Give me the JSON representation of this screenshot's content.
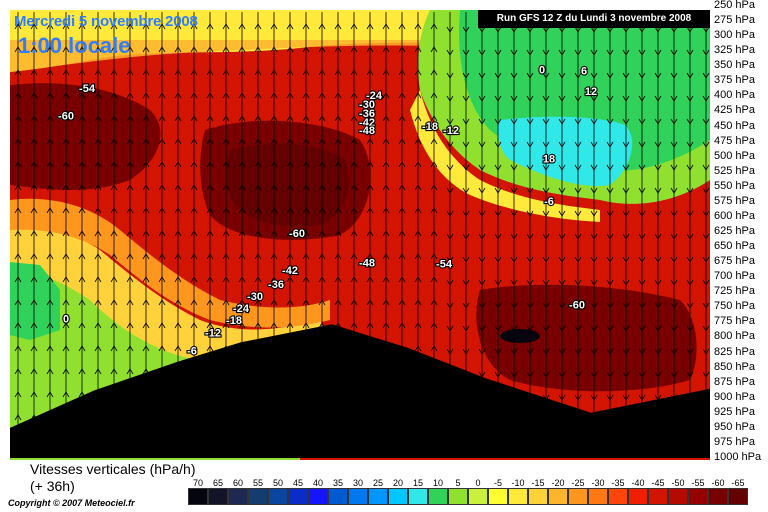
{
  "header": {
    "date_title": "Mercredi 5 novembre 2008",
    "time_title": "1:00 locale",
    "run_info": "Run GFS 12 Z du Lundi 3 novembre 2008"
  },
  "footer": {
    "variable_line1": "Vitesses verticales (hPa/h)",
    "variable_line2": "(+ 36h)",
    "copyright": "Copyright © 2007 Meteociel.fr"
  },
  "chart_data": {
    "type": "heatmap",
    "title": "Mercredi 5 novembre 2008",
    "subtitle": "1:00 locale",
    "ylabel": "",
    "y_axis": {
      "unit": "hPa",
      "ticks": [
        "250 hPa",
        "275 hPa",
        "300 hPa",
        "325 hPa",
        "350 hPa",
        "375 hPa",
        "400 hPa",
        "425 hPa",
        "450 hPa",
        "475 hPa",
        "500 hPa",
        "525 hPa",
        "550 hPa",
        "575 hPa",
        "600 hPa",
        "625 hPa",
        "650 hPa",
        "675 hPa",
        "700 hPa",
        "725 hPa",
        "750 hPa",
        "775 hPa",
        "800 hPa",
        "825 hPa",
        "850 hPa",
        "875 hPa",
        "900 hPa",
        "925 hPa",
        "950 hPa",
        "975 hPa",
        "1000 hPa"
      ],
      "range": [
        250,
        1000
      ]
    },
    "legend": {
      "values": [
        "70",
        "65",
        "60",
        "55",
        "50",
        "45",
        "40",
        "35",
        "30",
        "25",
        "20",
        "15",
        "10",
        "5",
        "0",
        "-5",
        "-10",
        "-15",
        "-20",
        "-25",
        "-30",
        "-35",
        "-40",
        "-45",
        "-50",
        "-55",
        "-60",
        "-65"
      ],
      "colors": [
        "#05050f",
        "#141428",
        "#1e2850",
        "#143c6e",
        "#0a46a0",
        "#0a2dc8",
        "#1414ff",
        "#005ad2",
        "#0078f0",
        "#0096ff",
        "#00c8ff",
        "#30e8e8",
        "#30d25a",
        "#90e030",
        "#c8f03c",
        "#ffff32",
        "#ffea3c",
        "#ffd23c",
        "#ffb42d",
        "#ff961e",
        "#ff7814",
        "#ff460a",
        "#f01e00",
        "#d21400",
        "#b40a00",
        "#960000",
        "#780000",
        "#640000"
      ]
    },
    "contour_labels": [
      {
        "text": "-54",
        "x": 0.11,
        "p": 393
      },
      {
        "text": "-60",
        "x": 0.08,
        "p": 438
      },
      {
        "text": "-24",
        "x": 0.52,
        "p": 404
      },
      {
        "text": "-30",
        "x": 0.51,
        "p": 419
      },
      {
        "text": "-36",
        "x": 0.51,
        "p": 434
      },
      {
        "text": "-42",
        "x": 0.51,
        "p": 449
      },
      {
        "text": "-48",
        "x": 0.51,
        "p": 462
      },
      {
        "text": "-18",
        "x": 0.6,
        "p": 456
      },
      {
        "text": "-12",
        "x": 0.63,
        "p": 462
      },
      {
        "text": "0",
        "x": 0.76,
        "p": 362
      },
      {
        "text": "6",
        "x": 0.82,
        "p": 364
      },
      {
        "text": "12",
        "x": 0.83,
        "p": 398
      },
      {
        "text": "18",
        "x": 0.77,
        "p": 510
      },
      {
        "text": "-6",
        "x": 0.77,
        "p": 580
      },
      {
        "text": "-60",
        "x": 0.41,
        "p": 633
      },
      {
        "text": "-42",
        "x": 0.4,
        "p": 695
      },
      {
        "text": "-36",
        "x": 0.38,
        "p": 718
      },
      {
        "text": "-30",
        "x": 0.35,
        "p": 738
      },
      {
        "text": "-24",
        "x": 0.33,
        "p": 758
      },
      {
        "text": "-18",
        "x": 0.32,
        "p": 778
      },
      {
        "text": "-12",
        "x": 0.29,
        "p": 798
      },
      {
        "text": "-6",
        "x": 0.26,
        "p": 828
      },
      {
        "text": "0",
        "x": 0.08,
        "p": 775
      },
      {
        "text": "-48",
        "x": 0.51,
        "p": 682
      },
      {
        "text": "-54",
        "x": 0.62,
        "p": 684
      },
      {
        "text": "-60",
        "x": 0.81,
        "p": 752
      }
    ],
    "terrain_pressure_hpa": [
      {
        "x": 0.0,
        "p": 950
      },
      {
        "x": 0.12,
        "p": 888
      },
      {
        "x": 0.24,
        "p": 840
      },
      {
        "x": 0.33,
        "p": 808
      },
      {
        "x": 0.46,
        "p": 778
      },
      {
        "x": 0.57,
        "p": 818
      },
      {
        "x": 0.68,
        "p": 868
      },
      {
        "x": 0.83,
        "p": 925
      },
      {
        "x": 1.0,
        "p": 885
      }
    ]
  }
}
